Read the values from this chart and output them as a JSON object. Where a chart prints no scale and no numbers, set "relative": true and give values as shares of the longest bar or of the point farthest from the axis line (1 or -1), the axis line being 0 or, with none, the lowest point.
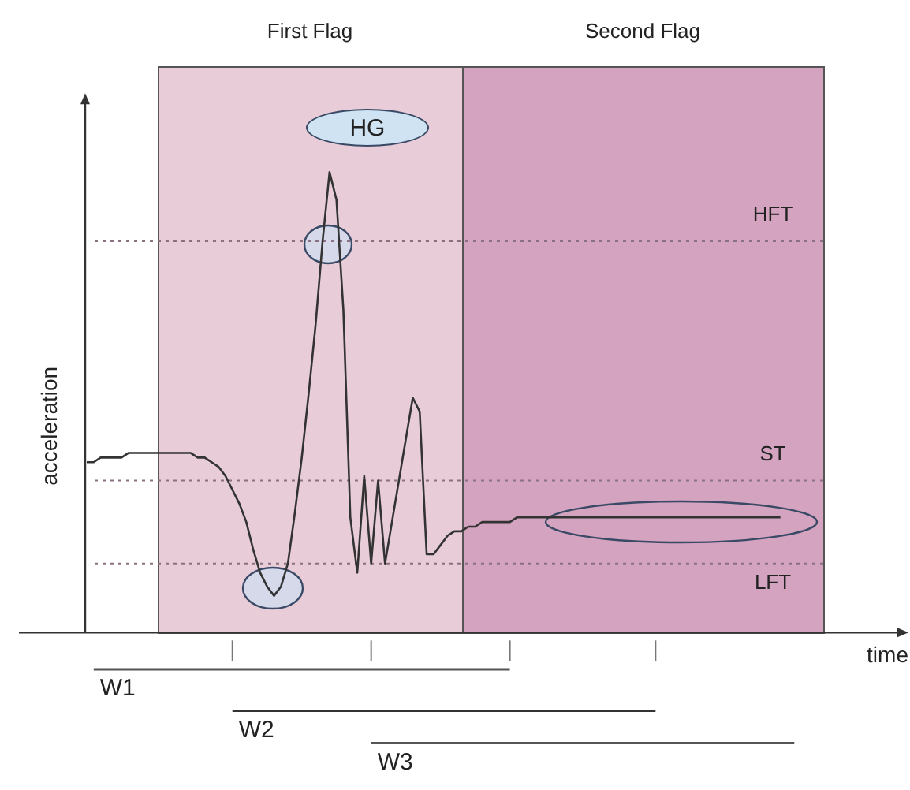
{
  "chart_data": {
    "type": "line",
    "relative": true,
    "xlabel": "time",
    "ylabel": "acceleration",
    "categories": [
      null,
      null,
      null,
      null,
      null,
      null,
      null,
      null,
      null,
      null,
      null,
      null,
      null,
      null,
      null,
      null,
      null,
      null,
      null,
      null,
      null,
      null,
      null,
      null,
      null,
      null,
      null,
      null,
      null,
      null,
      null,
      null,
      null,
      null,
      null,
      null,
      null,
      null,
      null,
      null,
      null,
      null,
      null,
      null,
      null,
      null,
      null,
      null,
      null,
      null,
      null,
      null,
      null,
      null,
      null,
      null,
      null,
      null,
      null,
      null,
      null,
      null,
      null,
      null,
      null,
      null,
      null,
      null,
      null,
      null,
      null,
      null,
      null,
      null,
      null,
      null,
      null,
      null,
      null,
      null,
      null,
      null,
      null,
      null,
      null,
      null,
      null,
      null,
      null,
      null,
      null,
      null,
      null,
      null,
      null,
      null,
      null,
      null,
      null,
      null,
      null,
      null,
      null,
      null,
      null,
      null,
      null,
      null,
      null,
      null,
      null,
      null,
      null,
      null,
      null,
      null,
      null,
      null,
      null
    ],
    "series": [
      {
        "color": "#333333",
        "values": [
          0.37,
          0.37,
          0.38,
          0.38,
          0.38,
          0.38,
          0.39,
          0.39,
          0.39,
          0.39,
          0.39,
          0.39,
          0.39,
          0.39,
          0.39,
          0.39,
          0.38,
          0.38,
          0.37,
          0.36,
          0.34,
          0.31,
          0.28,
          0.24,
          0.18,
          0.13,
          0.1,
          0.08,
          0.1,
          0.15,
          0.26,
          0.38,
          0.52,
          0.67,
          0.85,
          1,
          0.94,
          0.7,
          0.25,
          0.13,
          0.34,
          0.15,
          0.33,
          0.15,
          0.24,
          0.33,
          0.42,
          0.51,
          0.48,
          0.17,
          0.17,
          0.19,
          0.21,
          0.22,
          0.22,
          0.23,
          0.23,
          0.24,
          0.24,
          0.24,
          0.24,
          0.24,
          0.25,
          0.25,
          0.25,
          0.25,
          0.25,
          0.25,
          0.25,
          0.25,
          0.25,
          0.25,
          0.25,
          0.25,
          0.25,
          0.25,
          0.25,
          0.25,
          0.25,
          0.25,
          0.25,
          0.25,
          0.25,
          0.25,
          0.25,
          0.25,
          0.25,
          0.25,
          0.25,
          0.25,
          0.25,
          0.25,
          0.25,
          0.25,
          0.25,
          0.25,
          0.25,
          0.25,
          0.25,
          0.25,
          0.25,
          null,
          null,
          null,
          null,
          null,
          null,
          null,
          null,
          null,
          null,
          null,
          null,
          null,
          null,
          null,
          null,
          null,
          null
        ]
      },
      {
        "name": "W1",
        "type": "line",
        "color": "#555555",
        "values": [
          null,
          -0.08,
          -0.08,
          -0.08,
          -0.08,
          -0.08,
          -0.08,
          -0.08,
          -0.08,
          -0.08,
          -0.08,
          -0.08,
          -0.08,
          -0.08,
          -0.08,
          -0.08,
          -0.08,
          -0.08,
          -0.08,
          -0.08,
          -0.08,
          -0.08,
          -0.08,
          -0.08,
          -0.08,
          -0.08,
          -0.08,
          -0.08,
          -0.08,
          -0.08,
          -0.08,
          -0.08,
          -0.08,
          -0.08,
          -0.08,
          -0.08,
          -0.08,
          -0.08,
          -0.08,
          -0.08,
          -0.08,
          -0.08,
          -0.08,
          -0.08,
          -0.08,
          -0.08,
          -0.08,
          -0.08,
          -0.08,
          -0.08,
          -0.08,
          -0.08,
          -0.08,
          -0.08,
          -0.08,
          -0.08,
          -0.08,
          -0.08,
          -0.08,
          -0.08,
          -0.08,
          -0.08,
          null,
          null,
          null,
          null,
          null,
          null,
          null,
          null,
          null,
          null,
          null,
          null,
          null,
          null,
          null,
          null,
          null,
          null,
          null,
          null,
          null,
          null,
          null,
          null,
          null,
          null,
          null,
          null,
          null,
          null,
          null,
          null,
          null,
          null,
          null,
          null,
          null,
          null,
          null,
          null,
          null,
          null,
          null,
          null,
          null,
          null,
          null,
          null,
          null,
          null,
          null,
          null,
          null,
          null,
          null,
          null,
          null
        ]
      },
      {
        "name": "W2",
        "type": "line",
        "color": "#333333",
        "values": [
          null,
          null,
          null,
          null,
          null,
          null,
          null,
          null,
          null,
          null,
          null,
          null,
          null,
          null,
          null,
          null,
          null,
          null,
          null,
          null,
          null,
          -0.17,
          -0.17,
          -0.17,
          -0.17,
          -0.17,
          -0.17,
          -0.17,
          -0.17,
          -0.17,
          -0.17,
          -0.17,
          -0.17,
          -0.17,
          -0.17,
          -0.17,
          -0.17,
          -0.17,
          -0.17,
          -0.17,
          -0.17,
          -0.17,
          -0.17,
          -0.17,
          -0.17,
          -0.17,
          -0.17,
          -0.17,
          -0.17,
          -0.17,
          -0.17,
          -0.17,
          -0.17,
          -0.17,
          -0.17,
          -0.17,
          -0.17,
          -0.17,
          -0.17,
          -0.17,
          -0.17,
          -0.17,
          -0.17,
          -0.17,
          -0.17,
          -0.17,
          -0.17,
          -0.17,
          -0.17,
          -0.17,
          -0.17,
          -0.17,
          -0.17,
          -0.17,
          -0.17,
          -0.17,
          -0.17,
          -0.17,
          -0.17,
          -0.17,
          -0.17,
          -0.17,
          -0.17,
          null,
          null,
          null,
          null,
          null,
          null,
          null,
          null,
          null,
          null,
          null,
          null,
          null,
          null,
          null,
          null,
          null,
          null,
          null,
          null,
          null,
          null,
          null,
          null,
          null,
          null,
          null,
          null,
          null,
          null,
          null,
          null,
          null,
          null,
          null,
          null
        ]
      },
      {
        "name": "W3",
        "type": "line",
        "color": "#555555",
        "values": [
          null,
          null,
          null,
          null,
          null,
          null,
          null,
          null,
          null,
          null,
          null,
          null,
          null,
          null,
          null,
          null,
          null,
          null,
          null,
          null,
          null,
          null,
          null,
          null,
          null,
          null,
          null,
          null,
          null,
          null,
          null,
          null,
          null,
          null,
          null,
          null,
          null,
          null,
          null,
          null,
          null,
          -0.24,
          -0.24,
          -0.24,
          -0.24,
          -0.24,
          -0.24,
          -0.24,
          -0.24,
          -0.24,
          -0.24,
          -0.24,
          -0.24,
          -0.24,
          -0.24,
          -0.24,
          -0.24,
          -0.24,
          -0.24,
          -0.24,
          -0.24,
          -0.24,
          -0.24,
          -0.24,
          -0.24,
          -0.24,
          -0.24,
          -0.24,
          -0.24,
          -0.24,
          -0.24,
          -0.24,
          -0.24,
          -0.24,
          -0.24,
          -0.24,
          -0.24,
          -0.24,
          -0.24,
          -0.24,
          -0.24,
          -0.24,
          -0.24,
          -0.24,
          -0.24,
          -0.24,
          -0.24,
          -0.24,
          -0.24,
          -0.24,
          -0.24,
          -0.24,
          -0.24,
          -0.24,
          -0.24,
          -0.24,
          -0.24,
          -0.24,
          -0.24,
          -0.24,
          -0.24,
          -0.24,
          -0.24,
          null,
          null,
          null,
          null,
          null,
          null,
          null,
          null,
          null,
          null,
          null,
          null,
          null,
          null,
          null,
          null
        ]
      }
    ],
    "ref_lines": [
      {
        "axis": "y",
        "value": 0.85,
        "label": "HFT",
        "color": "#8a7080",
        "line_style": "dotted"
      },
      {
        "axis": "y",
        "value": 0.33,
        "label": "ST",
        "color": "#8a7080",
        "line_style": "dotted"
      },
      {
        "axis": "y",
        "value": 0.15,
        "label": "LFT",
        "color": "#8a7080",
        "line_style": "dotted"
      }
    ],
    "annotations": [
      "First Flag",
      "Second Flag",
      "HG"
    ]
  }
}
